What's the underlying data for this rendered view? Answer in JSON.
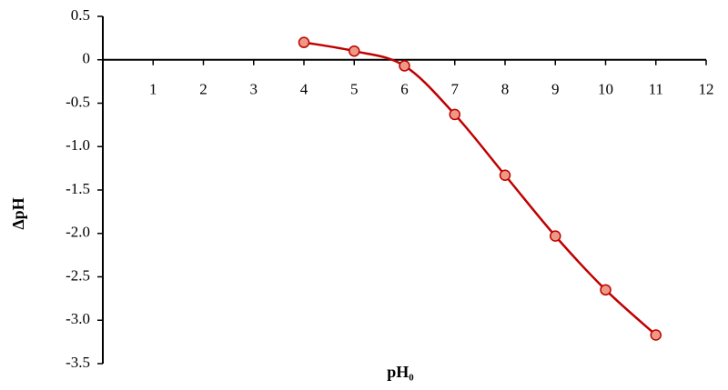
{
  "chart_data": {
    "type": "scatter",
    "x_label": "pH₀",
    "y_label": "ΔpH",
    "series": [
      {
        "color": "#c00000",
        "x": [
          4,
          5,
          6,
          7,
          8,
          9,
          10,
          11
        ],
        "values": [
          0.2,
          0.1,
          -0.07,
          -0.63,
          -1.33,
          -2.03,
          -2.65,
          -3.17
        ]
      }
    ],
    "xlim": [
      0,
      12
    ],
    "xticks": [
      1,
      2,
      3,
      4,
      5,
      6,
      7,
      8,
      9,
      10,
      11,
      12
    ],
    "ylim": [
      -3.5,
      0.5
    ],
    "yticks": [
      0.5,
      0,
      -0.5,
      {
        "value": -1,
        "label": "-1.0"
      },
      -1.5,
      {
        "value": -2,
        "label": "-2.0"
      },
      -2.5,
      {
        "value": -3,
        "label": "-3.0"
      },
      -3.5
    ],
    "grid": false
  }
}
